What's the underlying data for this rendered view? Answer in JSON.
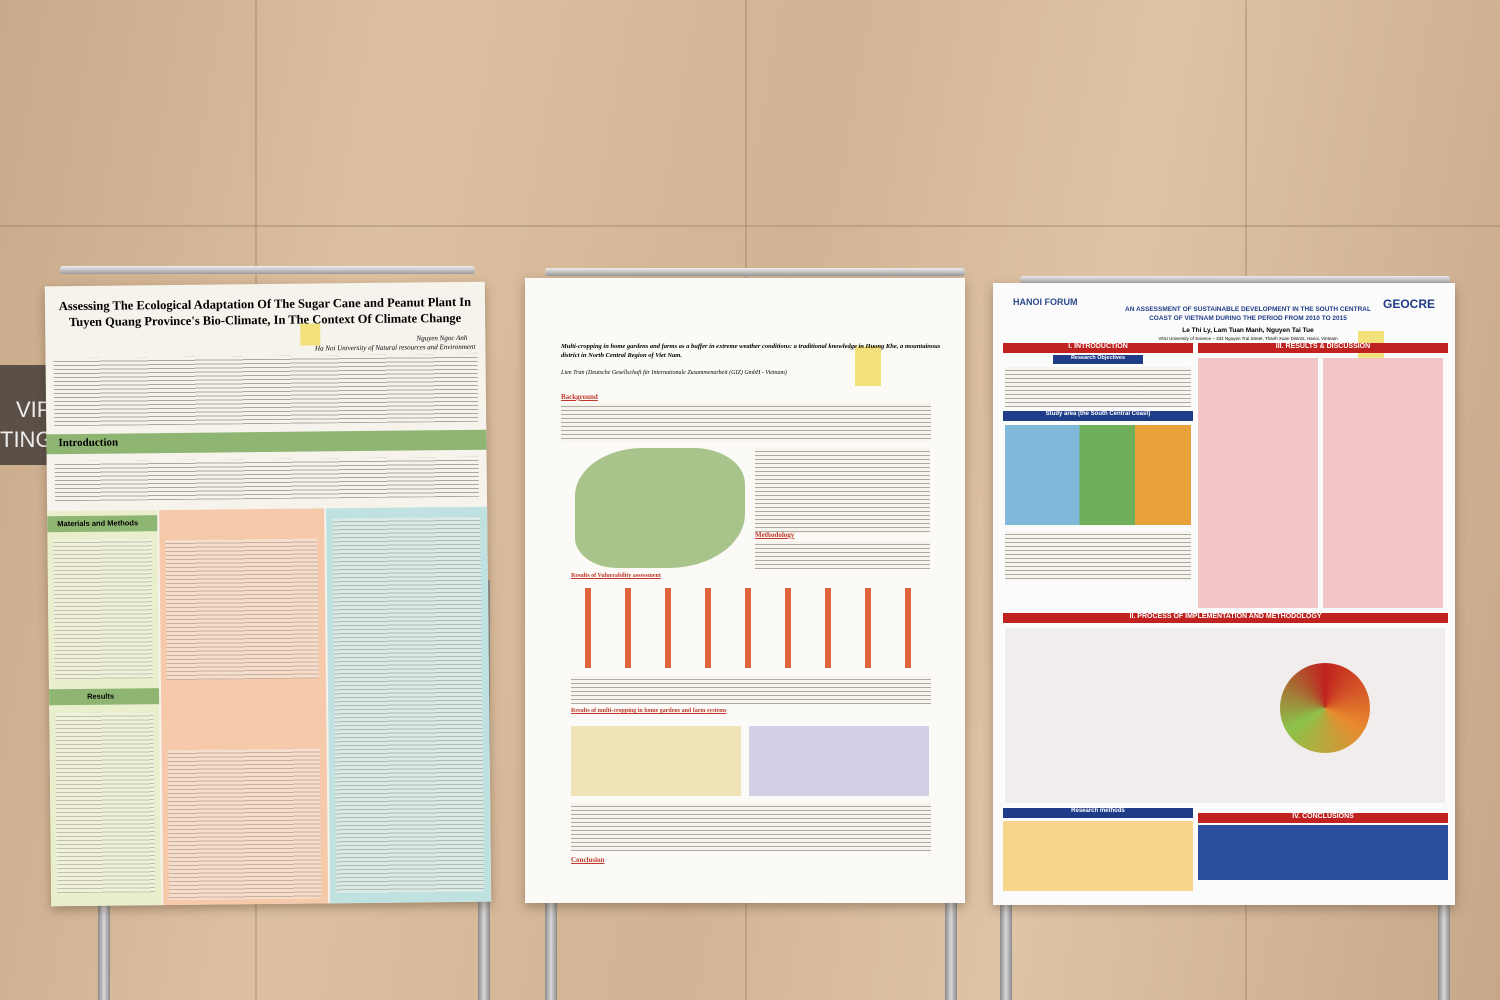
{
  "sign": {
    "lines": [
      "VIP",
      "TING"
    ]
  },
  "posters": [
    {
      "title": "Assessing The Ecological Adaptation Of The Sugar Cane and Peanut Plant In Tuyen Quang Province's Bio-Climate, In The Context Of Climate Change",
      "author": "Nguyen Ngoc Anh",
      "affiliation": "Ha Noi University of Natural resources and Environment",
      "sections": [
        "Introduction",
        "Materials and Methods",
        "Results"
      ]
    },
    {
      "title": "Multi-cropping in home gardens and farms as a buffer in extreme weather conditions: a traditional knowledge in Huong Khe, a mountainous district in North Central Region of Viet Nam.",
      "author": "Lien Tran (Deutsche Gesellschaft für Internationale Zusammenarbeit (GIZ) GmbH - Vietnam)",
      "sections": [
        "Background",
        "Methodology",
        "Results of Vulnerability assessment",
        "Results of multi-cropping in home gardens and farm systems",
        "Conclusion"
      ]
    },
    {
      "logos": [
        "HANOI FORUM",
        "GEOCRE"
      ],
      "title": "AN ASSESSMENT OF SUSTAINABLE DEVELOPMENT IN THE SOUTH CENTRAL COAST OF VIETNAM DURING THE PERIOD FROM 2010 TO 2015",
      "authors": "Le Thi Ly, Lam Tuan Manh, Nguyen Tai Tue",
      "affiliation": "VNU University of Science – 334 Nguyen Trai Street, Thanh Xuan District, Hanoi, Vietnam",
      "sections": [
        "I. INTRODUCTION",
        "Research Objectives",
        "Study area (the South Central Coast)",
        "III. RESULTS & DISCUSSION",
        "II. PROCESS OF IMPLEMENTATION AND METHODOLOGY",
        "Research methods",
        "IV. CONCLUSIONS"
      ]
    }
  ]
}
